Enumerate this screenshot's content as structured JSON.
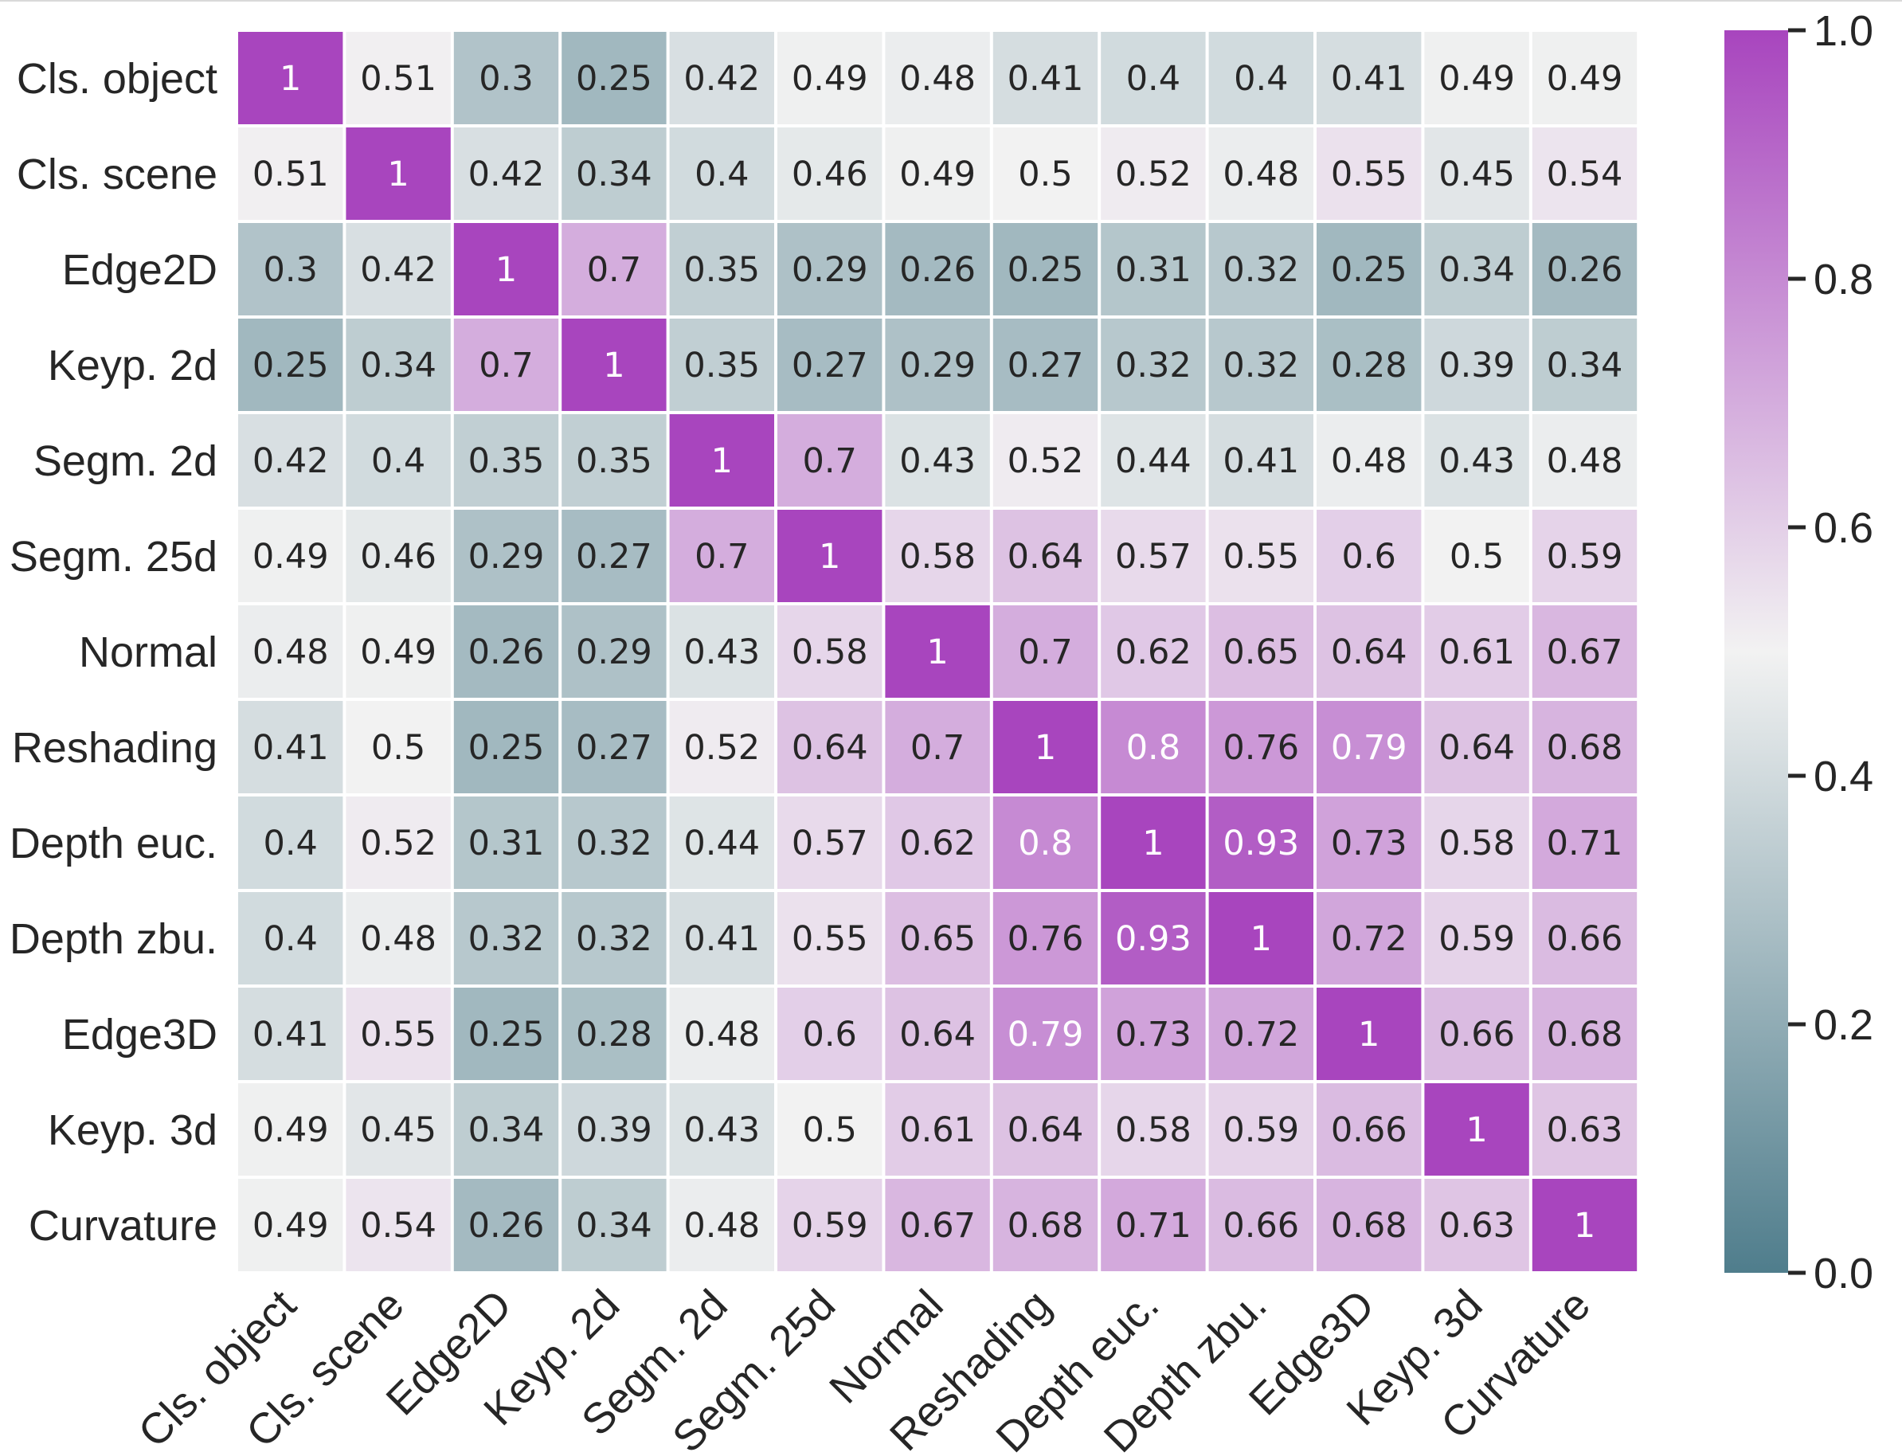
{
  "chart_data": {
    "type": "heatmap",
    "rows": [
      "Cls. object",
      "Cls. scene",
      "Edge2D",
      "Keyp. 2d",
      "Segm. 2d",
      "Segm. 25d",
      "Normal",
      "Reshading",
      "Depth euc.",
      "Depth zbu.",
      "Edge3D",
      "Keyp. 3d",
      "Curvature"
    ],
    "cols": [
      "Cls. object",
      "Cls. scene",
      "Edge2D",
      "Keyp. 2d",
      "Segm. 2d",
      "Segm. 25d",
      "Normal",
      "Reshading",
      "Depth euc.",
      "Depth zbu.",
      "Edge3D",
      "Keyp. 3d",
      "Curvature"
    ],
    "values": [
      [
        "1",
        "0.51",
        "0.3",
        "0.25",
        "0.42",
        "0.49",
        "0.48",
        "0.41",
        "0.4",
        "0.4",
        "0.41",
        "0.49",
        "0.49"
      ],
      [
        "0.51",
        "1",
        "0.42",
        "0.34",
        "0.4",
        "0.46",
        "0.49",
        "0.5",
        "0.52",
        "0.48",
        "0.55",
        "0.45",
        "0.54"
      ],
      [
        "0.3",
        "0.42",
        "1",
        "0.7",
        "0.35",
        "0.29",
        "0.26",
        "0.25",
        "0.31",
        "0.32",
        "0.25",
        "0.34",
        "0.26"
      ],
      [
        "0.25",
        "0.34",
        "0.7",
        "1",
        "0.35",
        "0.27",
        "0.29",
        "0.27",
        "0.32",
        "0.32",
        "0.28",
        "0.39",
        "0.34"
      ],
      [
        "0.42",
        "0.4",
        "0.35",
        "0.35",
        "1",
        "0.7",
        "0.43",
        "0.52",
        "0.44",
        "0.41",
        "0.48",
        "0.43",
        "0.48"
      ],
      [
        "0.49",
        "0.46",
        "0.29",
        "0.27",
        "0.7",
        "1",
        "0.58",
        "0.64",
        "0.57",
        "0.55",
        "0.6",
        "0.5",
        "0.59"
      ],
      [
        "0.48",
        "0.49",
        "0.26",
        "0.29",
        "0.43",
        "0.58",
        "1",
        "0.7",
        "0.62",
        "0.65",
        "0.64",
        "0.61",
        "0.67"
      ],
      [
        "0.41",
        "0.5",
        "0.25",
        "0.27",
        "0.52",
        "0.64",
        "0.7",
        "1",
        "0.8",
        "0.76",
        "0.79",
        "0.64",
        "0.68"
      ],
      [
        "0.4",
        "0.52",
        "0.31",
        "0.32",
        "0.44",
        "0.57",
        "0.62",
        "0.8",
        "1",
        "0.93",
        "0.73",
        "0.58",
        "0.71"
      ],
      [
        "0.4",
        "0.48",
        "0.32",
        "0.32",
        "0.41",
        "0.55",
        "0.65",
        "0.76",
        "0.93",
        "1",
        "0.72",
        "0.59",
        "0.66"
      ],
      [
        "0.41",
        "0.55",
        "0.25",
        "0.28",
        "0.48",
        "0.6",
        "0.64",
        "0.79",
        "0.73",
        "0.72",
        "1",
        "0.66",
        "0.68"
      ],
      [
        "0.49",
        "0.45",
        "0.34",
        "0.39",
        "0.43",
        "0.5",
        "0.61",
        "0.64",
        "0.58",
        "0.59",
        "0.66",
        "1",
        "0.63"
      ],
      [
        "0.49",
        "0.54",
        "0.26",
        "0.34",
        "0.48",
        "0.59",
        "0.67",
        "0.68",
        "0.71",
        "0.66",
        "0.68",
        "0.63",
        "1"
      ]
    ],
    "vmin": 0.0,
    "vmax": 1.0,
    "colormap": {
      "low": "#4f7d8c",
      "mid": "#f2f2f2",
      "high": "#a845be"
    },
    "colorbar_ticks": [
      "0.0",
      "0.2",
      "0.4",
      "0.6",
      "0.8",
      "1.0"
    ],
    "grid_line_color": "#ffffff",
    "colorbar_position": "right",
    "title": "",
    "xlabel": "",
    "ylabel": ""
  }
}
